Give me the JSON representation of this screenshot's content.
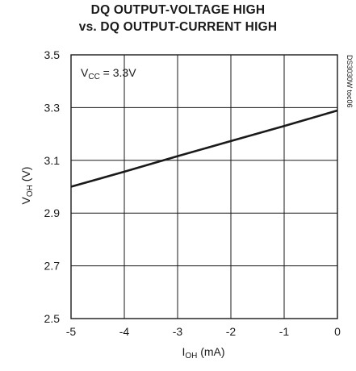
{
  "chart_data": {
    "type": "line",
    "title_line1": "DQ OUTPUT-VOLTAGE HIGH",
    "title_line2": "vs. DQ OUTPUT-CURRENT HIGH",
    "xlabel": {
      "main": "I",
      "sub": "OH",
      "rest": " (mA)"
    },
    "ylabel": {
      "main": "V",
      "sub": "OH",
      "rest": " (V)"
    },
    "xlim": [
      -5,
      0
    ],
    "ylim": [
      2.5,
      3.5
    ],
    "xticks": [
      -5,
      -4,
      -3,
      -2,
      -1,
      0
    ],
    "yticks": [
      2.5,
      2.7,
      2.9,
      3.1,
      3.3,
      3.5
    ],
    "xtick_labels": [
      "-5",
      "-4",
      "-3",
      "-2",
      "-1",
      "0"
    ],
    "ytick_labels": [
      "2.5",
      "2.7",
      "2.9",
      "3.1",
      "3.3",
      "3.5"
    ],
    "grid": true,
    "annotation": {
      "main": "V",
      "sub": "CC",
      "rest": " = 3.3V"
    },
    "side_note": "DS3030W toc06",
    "series": [
      {
        "x": [
          -5,
          -4,
          -3,
          -2,
          -1,
          0
        ],
        "y": [
          3.0,
          3.057,
          3.116,
          3.173,
          3.23,
          3.289
        ]
      }
    ]
  }
}
